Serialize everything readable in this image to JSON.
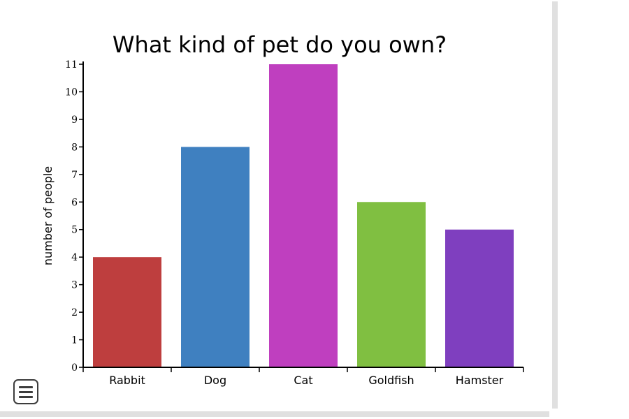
{
  "chart_data": {
    "type": "bar",
    "title": "What kind of pet do you own?",
    "xlabel": "",
    "ylabel": "number of people",
    "ylim": [
      0,
      11
    ],
    "yticks": [
      0,
      1,
      2,
      3,
      4,
      5,
      6,
      7,
      8,
      9,
      10,
      11
    ],
    "categories": [
      "Rabbit",
      "Dog",
      "Cat",
      "Goldfish",
      "Hamster"
    ],
    "values": [
      4,
      8,
      11,
      6,
      5
    ],
    "colors": [
      "#be3e3e",
      "#3f80c0",
      "#bf3fbf",
      "#80bf41",
      "#7f3fbf"
    ],
    "grid": false,
    "legend": "none"
  },
  "controls": {
    "menu_icon": "menu-icon"
  }
}
